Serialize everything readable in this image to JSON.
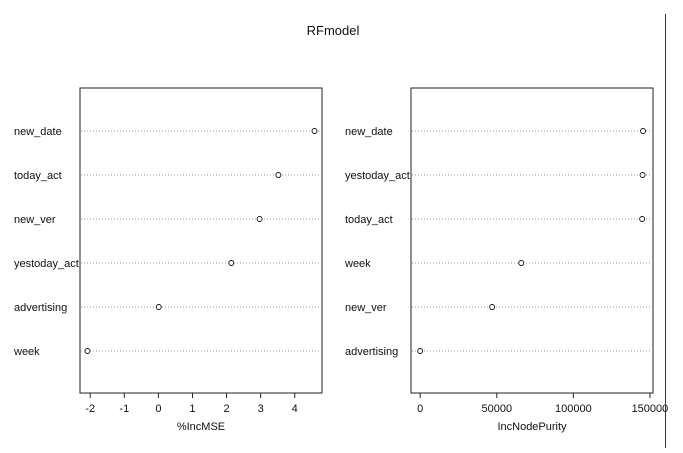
{
  "title": "RFmodel",
  "chart_data": [
    {
      "type": "scatter",
      "xlabel": "%IncMSE",
      "xlim": [
        -2.3,
        4.8
      ],
      "xticks": [
        -2,
        -1,
        0,
        1,
        2,
        3,
        4
      ],
      "tick_labels": [
        "-2",
        "-1",
        "0",
        "1",
        "2",
        "3",
        "4"
      ],
      "variables": [
        "new_date",
        "today_act",
        "new_ver",
        "yestoday_act",
        "advertising",
        "week"
      ],
      "values": [
        4.58,
        3.52,
        2.97,
        2.14,
        0.01,
        -2.08
      ],
      "grid": "dotted horizontal"
    },
    {
      "type": "scatter",
      "xlabel": "IncNodePurity",
      "xlim": [
        -6000,
        152000
      ],
      "xticks": [
        0,
        50000,
        100000,
        150000
      ],
      "tick_labels": [
        "0",
        "50000",
        "100000",
        "150000"
      ],
      "variables": [
        "new_date",
        "yestoday_act",
        "today_act",
        "week",
        "new_ver",
        "advertising"
      ],
      "values": [
        145500,
        145200,
        144900,
        66000,
        47000,
        0
      ],
      "grid": "dotted horizontal"
    }
  ]
}
